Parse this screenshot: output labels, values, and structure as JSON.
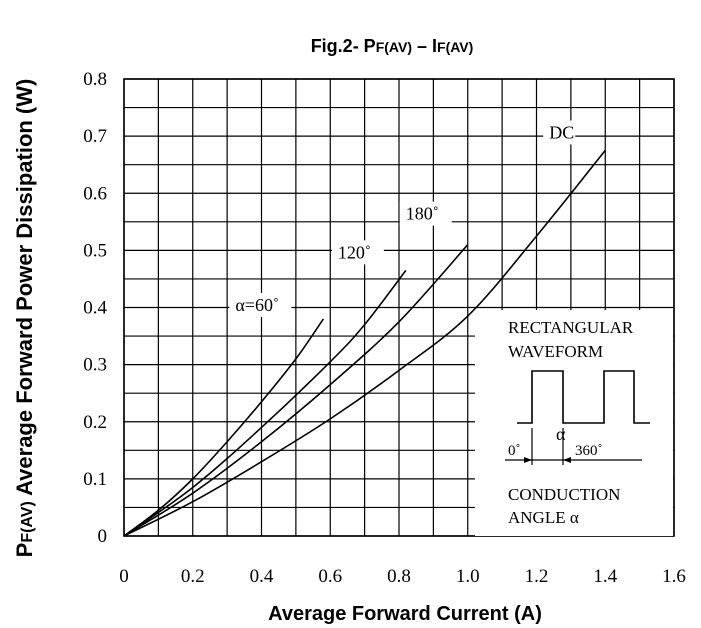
{
  "chart_data": {
    "type": "line",
    "title_main": "Fig.2- P",
    "title_sub1": "F(AV)",
    "title_dash": " – I",
    "title_sub2": "F(AV)",
    "xlabel": "Average Forward Current (A)",
    "ylabel_sub": "F(AV)",
    "ylabel_main": " Average Forward Power Dissipation (W)",
    "ylabel_prefix": "P",
    "xlim": [
      0,
      1.6
    ],
    "ylim": [
      0,
      0.8
    ],
    "x_ticks": [
      "0",
      "0.2",
      "0.4",
      "0.6",
      "0.8",
      "1.0",
      "1.2",
      "1.4",
      "1.6"
    ],
    "y_ticks": [
      "0",
      "0.1",
      "0.2",
      "0.3",
      "0.4",
      "0.5",
      "0.6",
      "0.7",
      "0.8"
    ],
    "x_tick_values": [
      0,
      0.2,
      0.4,
      0.6,
      0.8,
      1.0,
      1.2,
      1.4,
      1.6
    ],
    "y_tick_values": [
      0,
      0.1,
      0.2,
      0.3,
      0.4,
      0.5,
      0.6,
      0.7,
      0.8
    ],
    "grid": true,
    "series": [
      {
        "name": "α=60˚",
        "x": [
          0,
          0.1,
          0.2,
          0.3,
          0.4,
          0.5,
          0.58
        ],
        "y": [
          0,
          0.045,
          0.1,
          0.165,
          0.235,
          0.31,
          0.38
        ]
      },
      {
        "name": "120˚",
        "x": [
          0,
          0.2,
          0.4,
          0.6,
          0.7,
          0.82
        ],
        "y": [
          0,
          0.085,
          0.19,
          0.305,
          0.37,
          0.465
        ]
      },
      {
        "name": "180˚",
        "x": [
          0,
          0.2,
          0.4,
          0.6,
          0.8,
          1.0
        ],
        "y": [
          0,
          0.075,
          0.165,
          0.265,
          0.375,
          0.51
        ]
      },
      {
        "name": "DC",
        "x": [
          0,
          0.2,
          0.4,
          0.6,
          0.8,
          1.0,
          1.2,
          1.4
        ],
        "y": [
          0,
          0.06,
          0.13,
          0.205,
          0.29,
          0.385,
          0.525,
          0.675
        ]
      }
    ],
    "inset": {
      "line1": "RECTANGULAR",
      "line2": "WAVEFORM",
      "alpha": "α",
      "zero": "0˚",
      "deg360": "360˚",
      "line3": "CONDUCTION",
      "line4": "ANGLE α"
    }
  }
}
